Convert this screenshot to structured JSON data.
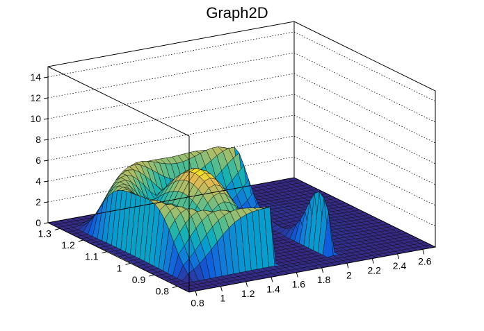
{
  "chart_data": {
    "type": "surface3d",
    "title": "Graph2D",
    "x_ticks": [
      "0.8",
      "1",
      "1.2",
      "1.4",
      "1.6",
      "1.8",
      "2",
      "2.2",
      "2.4",
      "2.6"
    ],
    "x_tick_values": [
      0.8,
      1.0,
      1.2,
      1.4,
      1.6,
      1.8,
      2.0,
      2.2,
      2.4,
      2.6
    ],
    "y_ticks": [
      "0.8",
      "0.9",
      "1",
      "1.1",
      "1.2",
      "1.3"
    ],
    "y_tick_values": [
      0.8,
      0.9,
      1.0,
      1.1,
      1.2,
      1.3
    ],
    "z_ticks": [
      "0",
      "2",
      "4",
      "6",
      "8",
      "10",
      "12",
      "14"
    ],
    "z_tick_values": [
      0,
      2,
      4,
      6,
      8,
      10,
      12,
      14
    ],
    "xlim": [
      0.75,
      2.7
    ],
    "ylim": [
      0.75,
      1.35
    ],
    "zlim": [
      0,
      15
    ],
    "grid": true,
    "colormap": "parula",
    "peak": {
      "x": 1.4,
      "y": 1.05,
      "z": 7.2
    }
  }
}
